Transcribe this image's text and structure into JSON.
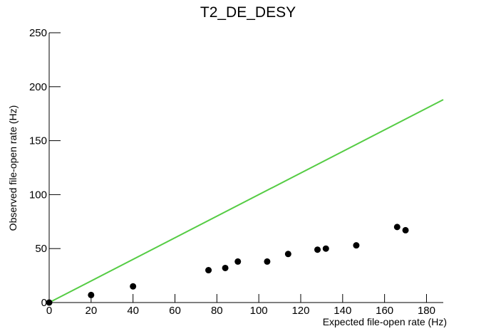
{
  "chart_data": {
    "type": "scatter",
    "title": "T2_DE_DESY",
    "x_label": "Expected file-open rate (Hz)",
    "y_label": "Observed file-open rate (Hz)",
    "series": [
      {
        "color": "#000000",
        "x": [
          0,
          20,
          40,
          76,
          84,
          90,
          104,
          114,
          128,
          132,
          146.5,
          166,
          170
        ],
        "values": [
          0,
          7,
          15,
          30,
          32,
          38,
          38,
          45,
          49,
          50,
          53,
          70,
          67
        ]
      }
    ],
    "reference_line": {
      "x": [
        0,
        188
      ],
      "y": [
        0,
        188
      ],
      "color": "#55cc44"
    },
    "xlim": [
      0,
      188
    ],
    "xticks": [
      0,
      20,
      40,
      60,
      80,
      100,
      120,
      140,
      160,
      180
    ],
    "ylim": [
      0,
      250
    ],
    "yticks": [
      0,
      50,
      100,
      150,
      200,
      250
    ]
  }
}
